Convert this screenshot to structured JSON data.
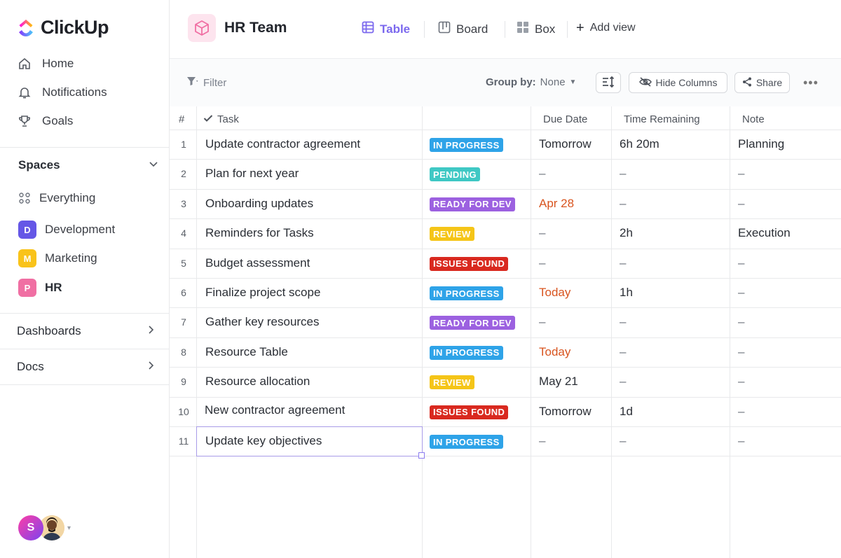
{
  "app": {
    "name": "ClickUp"
  },
  "sidebar": {
    "nav": [
      {
        "label": "Home",
        "icon": "home-icon"
      },
      {
        "label": "Notifications",
        "icon": "bell-icon"
      },
      {
        "label": "Goals",
        "icon": "trophy-icon"
      }
    ],
    "spaces_label": "Spaces",
    "spaces": [
      {
        "label": "Everything",
        "badge": ""
      },
      {
        "label": "Development",
        "badge": "D",
        "color": "#6557e6"
      },
      {
        "label": "Marketing",
        "badge": "M",
        "color": "#f9c31a"
      },
      {
        "label": "HR",
        "badge": "P",
        "color": "#f06fa3"
      }
    ],
    "dashboards_label": "Dashboards",
    "docs_label": "Docs",
    "avatar_initial": "S"
  },
  "header": {
    "title": "HR Team",
    "views": [
      {
        "label": "Table",
        "active": true
      },
      {
        "label": "Board",
        "active": false
      },
      {
        "label": "Box",
        "active": false
      }
    ],
    "add_view": "Add view"
  },
  "toolbar": {
    "filter": "Filter",
    "group_by_label": "Group by:",
    "group_by_value": "None",
    "hide_columns": "Hide Columns",
    "share": "Share"
  },
  "table": {
    "columns": {
      "num": "#",
      "task": "Task",
      "status": "",
      "due": "Due Date",
      "remaining": "Time Remaining",
      "note": "Note"
    },
    "status_colors": {
      "IN PROGRESS": "#2ea3e8",
      "PENDING": "#3fc8c4",
      "READY FOR DEV": "#9c61e0",
      "REVIEW": "#f5c518",
      "ISSUES FOUND": "#d9291f"
    },
    "overdue_color": "#d8541f",
    "rows": [
      {
        "n": "1",
        "task": "Update contractor agreement",
        "status": "IN PROGRESS",
        "due": "Tomorrow",
        "due_red": false,
        "remaining": "6h 20m",
        "note": "Planning"
      },
      {
        "n": "2",
        "task": "Plan for next year",
        "status": "PENDING",
        "due": "–",
        "due_red": false,
        "remaining": "–",
        "note": "–"
      },
      {
        "n": "3",
        "task": "Onboarding updates",
        "status": "READY FOR DEV",
        "due": "Apr 28",
        "due_red": true,
        "remaining": "–",
        "note": "–"
      },
      {
        "n": "4",
        "task": "Reminders for Tasks",
        "status": "REVIEW",
        "due": "–",
        "due_red": false,
        "remaining": "2h",
        "note": "Execution"
      },
      {
        "n": "5",
        "task": "Budget assessment",
        "status": "ISSUES FOUND",
        "due": "–",
        "due_red": false,
        "remaining": "–",
        "note": "–"
      },
      {
        "n": "6",
        "task": "Finalize project scope",
        "status": "IN PROGRESS",
        "due": "Today",
        "due_red": true,
        "remaining": "1h",
        "note": "–"
      },
      {
        "n": "7",
        "task": "Gather key resources",
        "status": "READY FOR DEV",
        "due": "–",
        "due_red": false,
        "remaining": "–",
        "note": "–"
      },
      {
        "n": "8",
        "task": "Resource Table",
        "status": "IN PROGRESS",
        "due": "Today",
        "due_red": true,
        "remaining": "–",
        "note": "–"
      },
      {
        "n": "9",
        "task": "Resource allocation",
        "status": "REVIEW",
        "due": "May 21",
        "due_red": false,
        "remaining": "–",
        "note": "–"
      },
      {
        "n": "10",
        "task": "New contractor agreement",
        "status": "ISSUES FOUND",
        "due": "Tomorrow",
        "due_red": false,
        "remaining": "1d",
        "note": "–"
      },
      {
        "n": "11",
        "task": "Update key objectives",
        "status": "IN PROGRESS",
        "due": "–",
        "due_red": false,
        "remaining": "–",
        "note": "–"
      }
    ]
  }
}
